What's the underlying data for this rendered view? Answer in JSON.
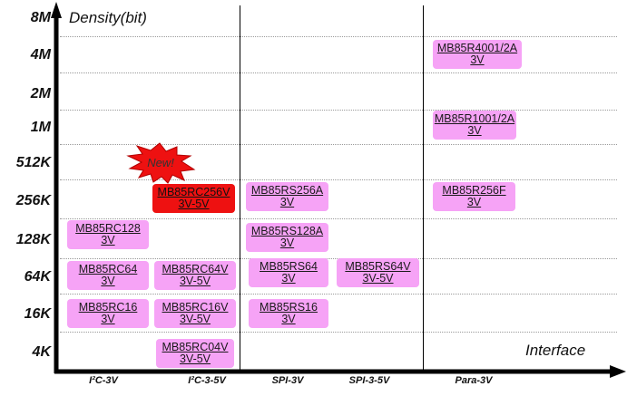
{
  "diagram": {
    "y_axis_title": "Density(bit)",
    "x_axis_title": "Interface",
    "y_levels": [
      "8M",
      "4M",
      "2M",
      "1M",
      "512K",
      "256K",
      "128K",
      "64K",
      "16K",
      "4K"
    ],
    "x_categories": [
      "I²C-3V",
      "I²C-3-5V",
      "SPI-3V",
      "SPI-3-5V",
      "Para-3V"
    ],
    "new_badge": "New!",
    "products": [
      {
        "name": "MB85R4001/2A",
        "voltage": "3V",
        "interface": "Para-3V",
        "density": "4M"
      },
      {
        "name": "MB85R1001/2A",
        "voltage": "3V",
        "interface": "Para-3V",
        "density": "1M"
      },
      {
        "name": "MB85RC256V",
        "voltage": "3V-5V",
        "interface": "I²C-3-5V",
        "density": "256K",
        "highlight": "#ee1111"
      },
      {
        "name": "MB85RS256A",
        "voltage": "3V",
        "interface": "SPI-3V",
        "density": "256K"
      },
      {
        "name": "MB85R256F",
        "voltage": "3V",
        "interface": "Para-3V",
        "density": "256K"
      },
      {
        "name": "MB85RC128",
        "voltage": "3V",
        "interface": "I²C-3V",
        "density": "128K"
      },
      {
        "name": "MB85RS128A",
        "voltage": "3V",
        "interface": "SPI-3V",
        "density": "128K"
      },
      {
        "name": "MB85RC64",
        "voltage": "3V",
        "interface": "I²C-3V",
        "density": "64K"
      },
      {
        "name": "MB85RC64V",
        "voltage": "3V-5V",
        "interface": "I²C-3-5V",
        "density": "64K"
      },
      {
        "name": "MB85RS64",
        "voltage": "3V",
        "interface": "SPI-3V",
        "density": "64K"
      },
      {
        "name": "MB85RS64V",
        "voltage": "3V-5V",
        "interface": "SPI-3-5V",
        "density": "64K"
      },
      {
        "name": "MB85RC16",
        "voltage": "3V",
        "interface": "I²C-3V",
        "density": "16K"
      },
      {
        "name": "MB85RC16V",
        "voltage": "3V-5V",
        "interface": "I²C-3-5V",
        "density": "16K"
      },
      {
        "name": "MB85RS16",
        "voltage": "3V",
        "interface": "SPI-3V",
        "density": "16K"
      },
      {
        "name": "MB85RC04V",
        "voltage": "3V-5V",
        "interface": "I²C-3-5V",
        "density": "4K"
      }
    ],
    "colors": {
      "chip": "#f6a3f6",
      "highlight": "#ee1111"
    }
  }
}
